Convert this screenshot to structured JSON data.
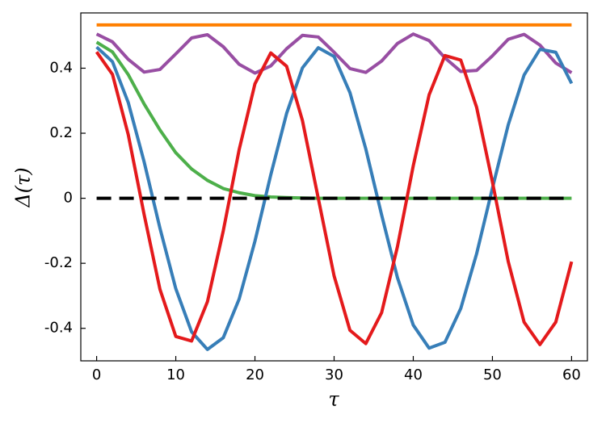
{
  "chart_data": {
    "type": "line",
    "xlabel": "τ",
    "ylabel": "Δ(τ)",
    "x": [
      0,
      2,
      4,
      6,
      8,
      10,
      12,
      14,
      16,
      18,
      20,
      22,
      24,
      26,
      28,
      30,
      32,
      34,
      36,
      38,
      40,
      42,
      44,
      46,
      48,
      50,
      52,
      54,
      56,
      58,
      60
    ],
    "series": [
      {
        "color": "#ff7f00",
        "values": [
          0.533,
          0.533,
          0.533,
          0.533,
          0.533,
          0.533,
          0.533,
          0.533,
          0.533,
          0.533,
          0.533,
          0.533,
          0.533,
          0.533,
          0.533,
          0.533,
          0.533,
          0.533,
          0.533,
          0.533,
          0.533,
          0.533,
          0.533,
          0.533,
          0.533,
          0.533,
          0.533,
          0.533,
          0.533,
          0.533,
          0.533
        ]
      },
      {
        "color": "#984ea3",
        "values": [
          0.505,
          0.481,
          0.427,
          0.388,
          0.396,
          0.444,
          0.493,
          0.503,
          0.466,
          0.412,
          0.385,
          0.407,
          0.46,
          0.501,
          0.496,
          0.449,
          0.399,
          0.387,
          0.422,
          0.476,
          0.505,
          0.485,
          0.432,
          0.39,
          0.393,
          0.438,
          0.489,
          0.504,
          0.471,
          0.416,
          0.386
        ]
      },
      {
        "color": "#4daf4a",
        "values": [
          0.48,
          0.45,
          0.38,
          0.29,
          0.21,
          0.14,
          0.09,
          0.055,
          0.03,
          0.017,
          0.008,
          0.004,
          0.002,
          0.001,
          0,
          0,
          0,
          0,
          0,
          0,
          0,
          0,
          0,
          0,
          0,
          0,
          0,
          0,
          0,
          0,
          0
        ]
      },
      {
        "color": "#377eb8",
        "values": [
          0.465,
          0.42,
          0.294,
          0.112,
          -0.092,
          -0.278,
          -0.411,
          -0.465,
          -0.429,
          -0.31,
          -0.132,
          0.072,
          0.261,
          0.401,
          0.463,
          0.436,
          0.325,
          0.152,
          -0.051,
          -0.244,
          -0.39,
          -0.461,
          -0.443,
          -0.339,
          -0.171,
          0.031,
          0.226,
          0.379,
          0.458,
          0.449,
          0.353
        ]
      },
      {
        "color": "#e41a1c",
        "values": [
          0.45,
          0.381,
          0.195,
          -0.05,
          -0.28,
          -0.425,
          -0.439,
          -0.318,
          -0.1,
          0.149,
          0.352,
          0.447,
          0.406,
          0.239,
          0,
          -0.239,
          -0.406,
          -0.447,
          -0.352,
          -0.149,
          0.1,
          0.318,
          0.439,
          0.425,
          0.28,
          0.05,
          -0.195,
          -0.381,
          -0.45,
          -0.381,
          -0.195
        ]
      },
      {
        "color": "#000000",
        "dashed": true,
        "values": [
          0,
          0,
          0,
          0,
          0,
          0,
          0,
          0,
          0,
          0,
          0,
          0,
          0,
          0,
          0,
          0,
          0,
          0,
          0,
          0,
          0,
          0,
          0,
          0,
          0,
          0,
          0,
          0,
          0,
          0,
          0
        ]
      }
    ],
    "xlim": [
      -2,
      62
    ],
    "ylim": [
      -0.5,
      0.57
    ],
    "xticks": [
      0,
      10,
      20,
      30,
      40,
      50,
      60
    ],
    "yticks": [
      -0.4,
      -0.2,
      0,
      0.2,
      0.4
    ]
  }
}
